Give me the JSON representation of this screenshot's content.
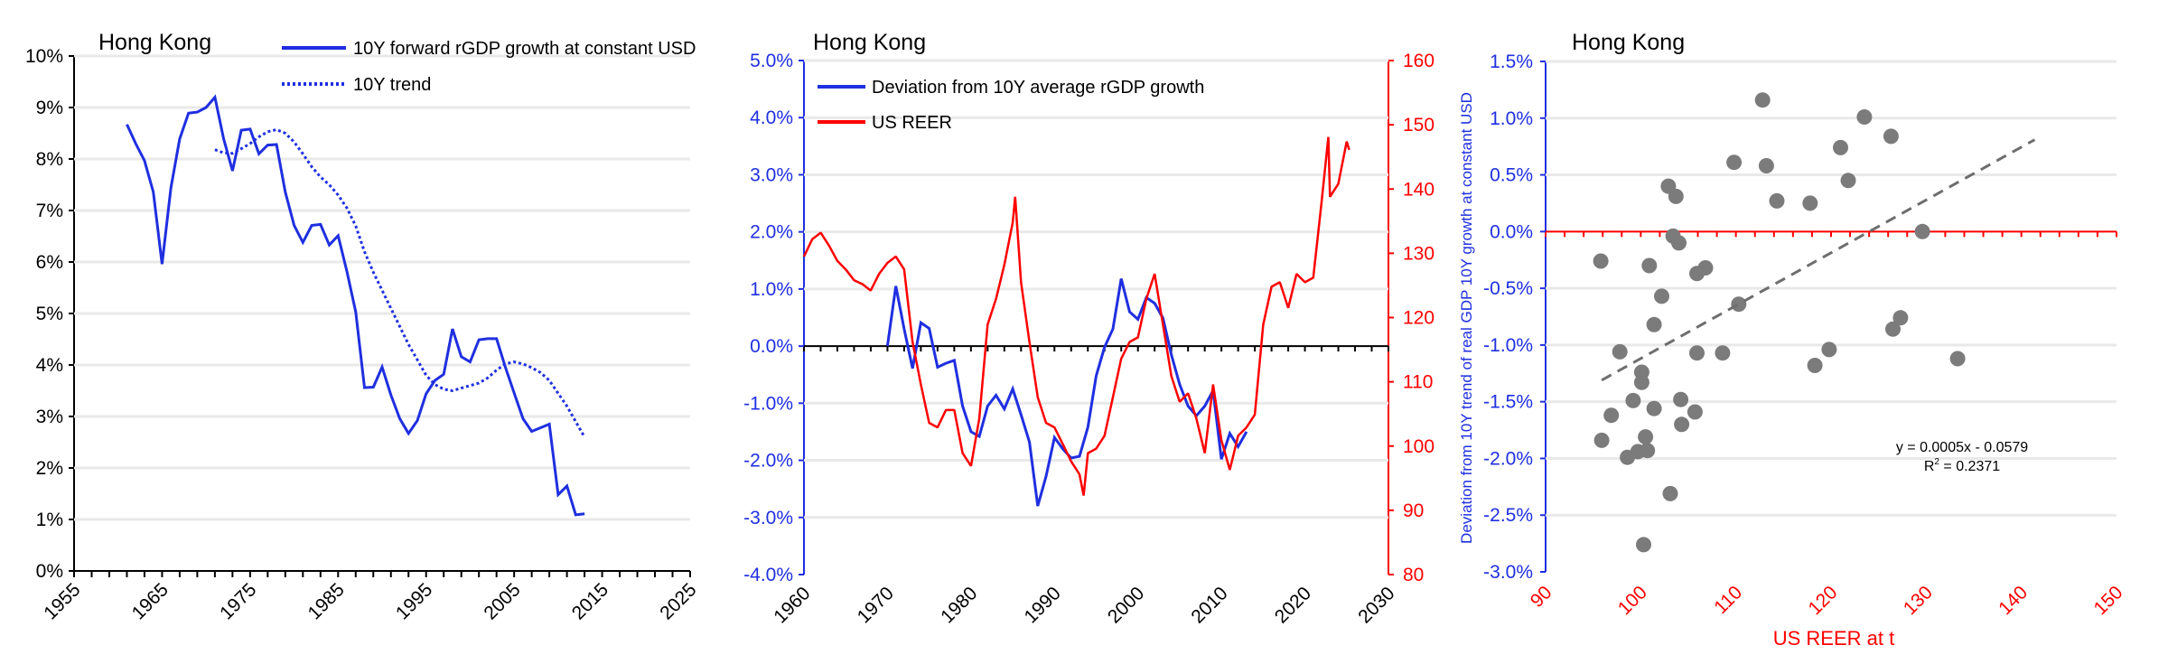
{
  "colors": {
    "blue": "#1f2fe0",
    "red": "#ff0000",
    "grid": "#e9e9e9",
    "scatter": "#7b7b7b",
    "trend": "#6e6e6e",
    "black": "#000000"
  },
  "chart_data": [
    {
      "type": "line",
      "title": "Hong Kong",
      "xlim": [
        1955,
        2025
      ],
      "ylim": [
        0,
        10
      ],
      "x_tick_labels": [
        "1955",
        "1965",
        "1975",
        "1985",
        "1995",
        "2005",
        "2015",
        "2025"
      ],
      "y_tick_labels": [
        "0%",
        "1%",
        "2%",
        "3%",
        "4%",
        "5%",
        "6%",
        "7%",
        "8%",
        "9%",
        "10%"
      ],
      "grid": true,
      "legend_position": "top-right",
      "series": [
        {
          "name": "10Y forward rGDP growth at constant USD",
          "style": "solid",
          "x": [
            1961,
            1962,
            1963,
            1964,
            1965,
            1966,
            1967,
            1968,
            1969,
            1970,
            1971,
            1972,
            1973,
            1974,
            1975,
            1976,
            1977,
            1978,
            1979,
            1980,
            1981,
            1982,
            1983,
            1984,
            1985,
            1986,
            1987,
            1988,
            1989,
            1990,
            1991,
            1992,
            1993,
            1994,
            1995,
            1996,
            1997,
            1998,
            1999,
            2000,
            2001,
            2002,
            2003,
            2004,
            2005,
            2006,
            2007,
            2008,
            2009,
            2010,
            2011,
            2012,
            2013
          ],
          "values": [
            8.67,
            8.3,
            7.97,
            7.36,
            5.96,
            7.44,
            8.39,
            8.89,
            8.91,
            9.0,
            9.2,
            8.39,
            7.77,
            8.56,
            8.58,
            8.1,
            8.27,
            8.28,
            7.36,
            6.71,
            6.38,
            6.71,
            6.73,
            6.33,
            6.51,
            5.82,
            5.03,
            3.56,
            3.57,
            3.96,
            3.42,
            2.96,
            2.67,
            2.92,
            3.44,
            3.7,
            3.82,
            4.7,
            4.16,
            4.06,
            4.49,
            4.51,
            4.51,
            3.96,
            3.46,
            2.96,
            2.71,
            2.78,
            2.85,
            1.48,
            1.65,
            1.09,
            1.11
          ]
        },
        {
          "name": "10Y trend",
          "style": "dotted",
          "x": [
            1971,
            1972,
            1973,
            1974,
            1975,
            1976,
            1977,
            1978,
            1979,
            1980,
            1981,
            1982,
            1983,
            1984,
            1985,
            1986,
            1987,
            1988,
            1989,
            1990,
            1991,
            1992,
            1993,
            1994,
            1995,
            1996,
            1997,
            1998,
            1999,
            2000,
            2001,
            2002,
            2003,
            2004,
            2005,
            2006,
            2007,
            2008,
            2009,
            2010,
            2011,
            2012,
            2013
          ],
          "values": [
            8.18,
            8.12,
            8.11,
            8.2,
            8.3,
            8.43,
            8.53,
            8.57,
            8.5,
            8.33,
            8.1,
            7.85,
            7.65,
            7.5,
            7.3,
            7.05,
            6.7,
            6.2,
            5.8,
            5.45,
            5.1,
            4.75,
            4.4,
            4.1,
            3.8,
            3.62,
            3.53,
            3.5,
            3.55,
            3.6,
            3.65,
            3.75,
            3.9,
            4.02,
            4.06,
            4.02,
            3.95,
            3.85,
            3.7,
            3.45,
            3.2,
            2.9,
            2.6
          ]
        }
      ]
    },
    {
      "type": "line",
      "title": "Hong Kong",
      "xlim": [
        1960,
        2030
      ],
      "ylim": [
        -4,
        5
      ],
      "y2lim": [
        80,
        160
      ],
      "x_tick_labels": [
        "1960",
        "1970",
        "1980",
        "1990",
        "2000",
        "2010",
        "2020",
        "2030"
      ],
      "y_tick_labels": [
        "-4.0%",
        "-3.0%",
        "-2.0%",
        "-1.0%",
        "0.0%",
        "1.0%",
        "2.0%",
        "3.0%",
        "4.0%",
        "5.0%"
      ],
      "y2_tick_labels": [
        "80",
        "90",
        "100",
        "110",
        "120",
        "130",
        "140",
        "150",
        "160"
      ],
      "grid": true,
      "legend_position": "top-left",
      "series": [
        {
          "name": "Deviation from 10Y average rGDP growth",
          "axis": "left",
          "x": [
            1970,
            1971,
            1972,
            1973,
            1974,
            1975,
            1976,
            1977,
            1978,
            1979,
            1980,
            1981,
            1982,
            1983,
            1984,
            1985,
            1986,
            1987,
            1988,
            1989,
            1990,
            1991,
            1992,
            1993,
            1994,
            1995,
            1996,
            1997,
            1998,
            1999,
            2000,
            2001,
            2002,
            2003,
            2004,
            2005,
            2006,
            2007,
            2008,
            2009,
            2010,
            2011,
            2012,
            2013
          ],
          "values": [
            0.0,
            1.05,
            0.3,
            -0.39,
            0.41,
            0.31,
            -0.37,
            -0.3,
            -0.25,
            -1.05,
            -1.5,
            -1.58,
            -1.05,
            -0.86,
            -1.1,
            -0.75,
            -1.2,
            -1.68,
            -2.8,
            -2.28,
            -1.6,
            -1.8,
            -1.96,
            -1.93,
            -1.42,
            -0.52,
            -0.02,
            0.3,
            1.18,
            0.6,
            0.47,
            0.85,
            0.75,
            0.49,
            -0.15,
            -0.67,
            -1.05,
            -1.22,
            -1.05,
            -0.78,
            -1.98,
            -1.53,
            -1.76,
            -1.5
          ]
        },
        {
          "name": "US REER",
          "axis": "right",
          "x": [
            1960,
            1961,
            1962,
            1963,
            1964,
            1965,
            1966,
            1967,
            1968,
            1969,
            1970,
            1971,
            1972,
            1973,
            1974,
            1975,
            1976,
            1977,
            1978,
            1979,
            1980,
            1981,
            1982,
            1983,
            1984,
            1985,
            1985.3,
            1986,
            1987,
            1988,
            1989,
            1990,
            1991,
            1992,
            1993,
            1993.5,
            1994,
            1995,
            1996,
            1997,
            1998,
            1999,
            2000,
            2001,
            2002,
            2003,
            2004,
            2005,
            2006,
            2007,
            2008,
            2009,
            2010,
            2011,
            2012,
            2013,
            2014,
            2015,
            2016,
            2017,
            2018,
            2019,
            2020,
            2021,
            2022,
            2022.8,
            2023,
            2024,
            2025,
            2025.3
          ],
          "values": [
            129.5,
            132.2,
            133.2,
            131.2,
            128.8,
            127.5,
            125.8,
            125.2,
            124.2,
            126.8,
            128.5,
            129.5,
            127.5,
            116.2,
            109.6,
            103.6,
            102.9,
            105.6,
            105.6,
            98.9,
            96.9,
            104.3,
            118.9,
            122.9,
            128.2,
            134.8,
            138.8,
            125.5,
            116.2,
            107.6,
            103.6,
            102.9,
            100.3,
            97.6,
            95.6,
            92.3,
            98.9,
            99.6,
            101.6,
            107.6,
            113.6,
            116.2,
            116.9,
            122.9,
            126.8,
            118.9,
            110.9,
            106.9,
            108.2,
            104.3,
            98.9,
            109.6,
            100.9,
            96.3,
            101.6,
            102.9,
            104.9,
            118.9,
            124.8,
            125.5,
            121.5,
            126.8,
            125.5,
            126.2,
            138.1,
            148.1,
            138.8,
            140.8,
            147.4,
            146.1
          ]
        }
      ]
    },
    {
      "type": "scatter",
      "title": "Hong Kong",
      "xlabel": "US REER at t",
      "ylabel": "Deviation from 10Y trend of real GDP 10Y growth at constant USD",
      "xlim": [
        90,
        150
      ],
      "ylim": [
        -3.0,
        1.5
      ],
      "x_tick_labels": [
        "90",
        "100",
        "110",
        "120",
        "130",
        "140",
        "150"
      ],
      "y_tick_labels": [
        "-3.0%",
        "-2.5%",
        "-2.0%",
        "-1.5%",
        "-1.0%",
        "-0.5%",
        "0.0%",
        "0.5%",
        "1.0%",
        "1.5%"
      ],
      "grid": true,
      "points": [
        [
          95.8,
          -0.26
        ],
        [
          112.8,
          1.16
        ],
        [
          123.5,
          1.01
        ],
        [
          126.3,
          0.84
        ],
        [
          121.0,
          0.74
        ],
        [
          109.8,
          0.61
        ],
        [
          113.2,
          0.58
        ],
        [
          121.8,
          0.45
        ],
        [
          102.9,
          0.4
        ],
        [
          103.7,
          0.31
        ],
        [
          114.3,
          0.27
        ],
        [
          117.8,
          0.25
        ],
        [
          129.6,
          0.0
        ],
        [
          103.4,
          -0.04
        ],
        [
          104.0,
          -0.1
        ],
        [
          100.9,
          -0.3
        ],
        [
          105.9,
          -0.37
        ],
        [
          106.8,
          -0.32
        ],
        [
          102.2,
          -0.57
        ],
        [
          110.3,
          -0.64
        ],
        [
          101.4,
          -0.82
        ],
        [
          127.3,
          -0.76
        ],
        [
          126.5,
          -0.86
        ],
        [
          97.8,
          -1.06
        ],
        [
          105.9,
          -1.07
        ],
        [
          108.6,
          -1.07
        ],
        [
          119.8,
          -1.04
        ],
        [
          118.3,
          -1.18
        ],
        [
          133.3,
          -1.12
        ],
        [
          100.1,
          -1.24
        ],
        [
          100.1,
          -1.33
        ],
        [
          99.2,
          -1.49
        ],
        [
          104.2,
          -1.48
        ],
        [
          101.4,
          -1.56
        ],
        [
          105.7,
          -1.59
        ],
        [
          96.9,
          -1.62
        ],
        [
          104.3,
          -1.7
        ],
        [
          100.5,
          -1.81
        ],
        [
          95.9,
          -1.84
        ],
        [
          99.7,
          -1.94
        ],
        [
          100.7,
          -1.93
        ],
        [
          98.6,
          -1.99
        ],
        [
          103.1,
          -2.31
        ],
        [
          100.3,
          -2.76
        ]
      ],
      "trendline": {
        "x": [
          95.9,
          141.4
        ],
        "y": [
          -1.31,
          0.81
        ]
      },
      "equation": "y = 0.0005x - 0.0579",
      "r2_label": "R",
      "r2_sup": "2",
      "r2_value": " = 0.2371"
    }
  ]
}
